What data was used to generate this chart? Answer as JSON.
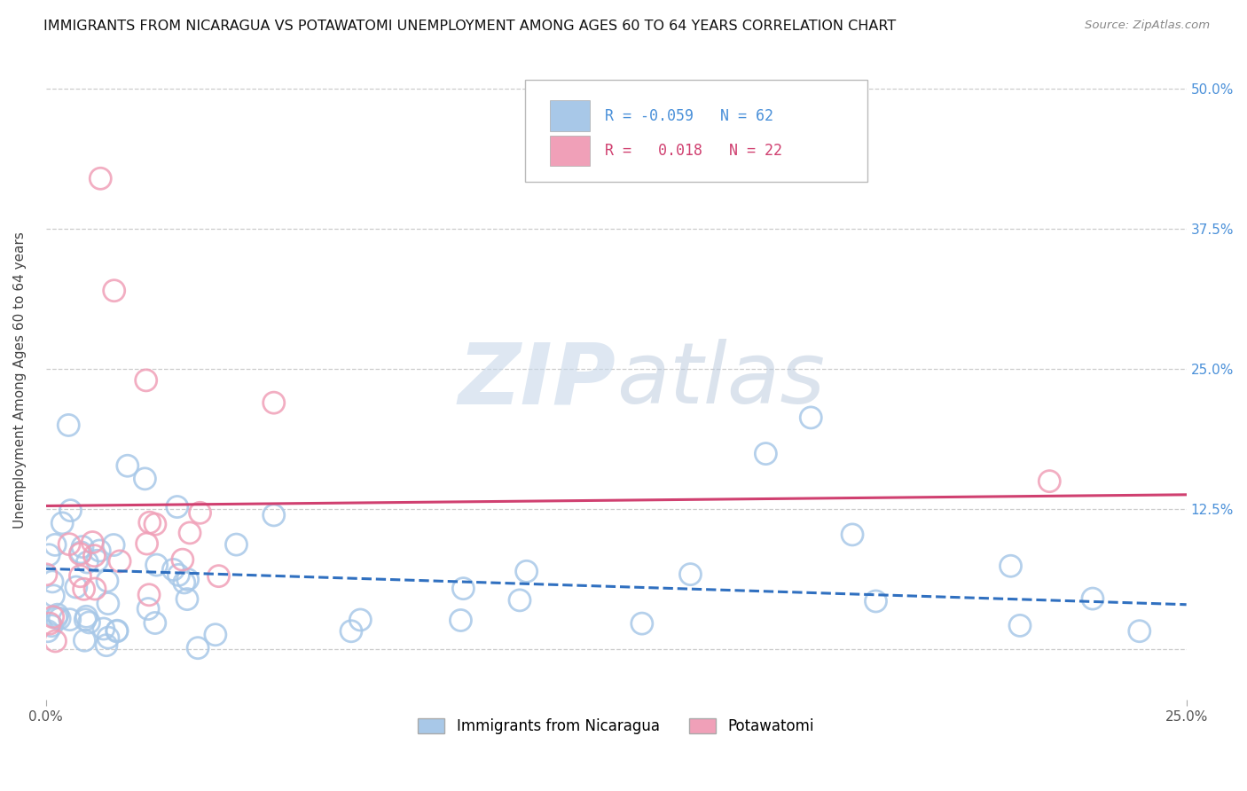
{
  "title": "IMMIGRANTS FROM NICARAGUA VS POTAWATOMI UNEMPLOYMENT AMONG AGES 60 TO 64 YEARS CORRELATION CHART",
  "source": "Source: ZipAtlas.com",
  "ylabel": "Unemployment Among Ages 60 to 64 years",
  "legend_blue_r": "-0.059",
  "legend_blue_n": "62",
  "legend_pink_r": "0.018",
  "legend_pink_n": "22",
  "legend_blue_label": "Immigrants from Nicaragua",
  "legend_pink_label": "Potawatomi",
  "xmin": 0.0,
  "xmax": 0.25,
  "ymin": -0.045,
  "ymax": 0.525,
  "yticks": [
    0.0,
    0.125,
    0.25,
    0.375,
    0.5
  ],
  "ytick_labels": [
    "",
    "12.5%",
    "25.0%",
    "37.5%",
    "50.0%"
  ],
  "blue_color": "#a8c8e8",
  "pink_color": "#f0a0b8",
  "blue_line_color": "#3070c0",
  "pink_line_color": "#d04070",
  "watermark_color": "#d8e4ef",
  "title_fontsize": 11.5,
  "axis_label_fontsize": 11,
  "tick_fontsize": 11,
  "legend_fontsize": 12,
  "blue_trend_y0": 0.072,
  "blue_trend_y1": 0.04,
  "pink_trend_y0": 0.128,
  "pink_trend_y1": 0.138
}
